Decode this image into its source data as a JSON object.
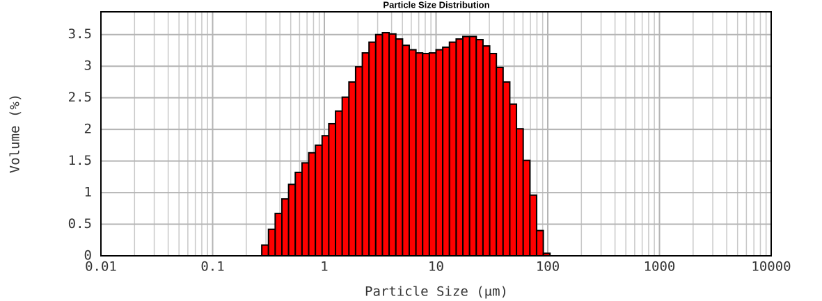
{
  "chart_data": {
    "type": "histogram",
    "title": "Particle Size Distribution",
    "x_label": "Particle Size (μm)",
    "y_label": "Volume (%)",
    "bins": [
      0.2754,
      0.3162,
      0.3631,
      0.4169,
      0.4786,
      0.5495,
      0.631,
      0.7244,
      0.8318,
      0.955,
      1.096,
      1.259,
      1.445,
      1.66,
      1.905,
      2.188,
      2.512,
      2.884,
      3.311,
      3.802,
      4.365,
      5.012,
      5.754,
      6.607,
      7.586,
      8.71,
      10,
      11.48,
      13.18,
      15.14,
      17.38,
      19.95,
      22.91,
      26.3,
      30.2,
      34.67,
      39.81,
      45.71,
      52.48,
      60.26,
      69.18,
      79.43,
      91.2,
      104.7
    ],
    "values": [
      0.17,
      0.42,
      0.67,
      0.9,
      1.13,
      1.32,
      1.47,
      1.63,
      1.75,
      1.9,
      2.09,
      2.29,
      2.51,
      2.75,
      2.99,
      3.21,
      3.38,
      3.5,
      3.53,
      3.51,
      3.43,
      3.33,
      3.26,
      3.21,
      3.2,
      3.21,
      3.26,
      3.3,
      3.38,
      3.43,
      3.47,
      3.47,
      3.42,
      3.32,
      3.2,
      2.98,
      2.75,
      2.4,
      2.01,
      1.51,
      0.96,
      0.4,
      0.04
    ],
    "color": "#ff0000",
    "xscale": "log",
    "grid": true,
    "minor_grid": true,
    "xlim": [
      0.01,
      10000
    ],
    "xticks": [
      0.01,
      0.1,
      1,
      10,
      100,
      1000,
      10000
    ],
    "ylim": [
      0,
      3.86
    ],
    "yticks": [
      0,
      0.5,
      1,
      1.5,
      2,
      2.5,
      3,
      3.5
    ]
  }
}
